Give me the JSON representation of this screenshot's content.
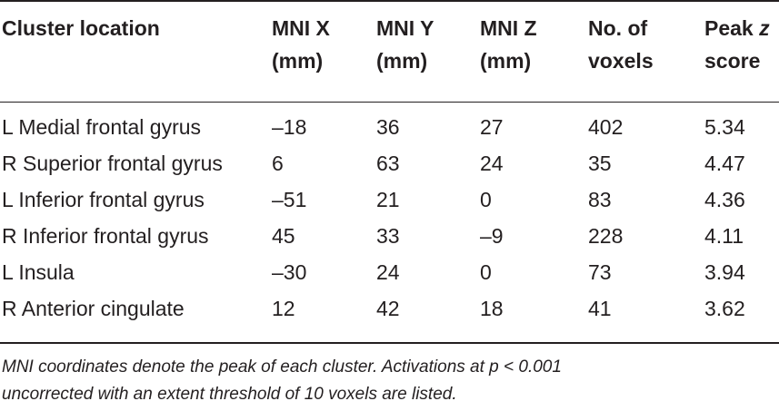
{
  "table": {
    "headers": [
      {
        "line1": "Cluster location",
        "line2": ""
      },
      {
        "line1": "MNI X",
        "line2": "(mm)"
      },
      {
        "line1": "MNI Y",
        "line2": "(mm)"
      },
      {
        "line1": "MNI Z",
        "line2": "(mm)"
      },
      {
        "line1": "No. of",
        "line2": "voxels"
      },
      {
        "line1": "Peak z",
        "line2": "score"
      }
    ],
    "rows": [
      [
        "L Medial frontal gyrus",
        "–18",
        "36",
        "27",
        "402",
        "5.34"
      ],
      [
        "R Superior frontal gyrus",
        "6",
        "63",
        "24",
        "35",
        "4.47"
      ],
      [
        "L Inferior frontal gyrus",
        "–51",
        "21",
        "0",
        "83",
        "4.36"
      ],
      [
        "R Inferior frontal gyrus",
        "45",
        "33",
        "–9",
        "228",
        "4.11"
      ],
      [
        "L Insula",
        "–30",
        "24",
        "0",
        "73",
        "3.94"
      ],
      [
        "R Anterior cingulate",
        "12",
        "42",
        "18",
        "41",
        "3.62"
      ]
    ]
  },
  "footnote": {
    "line1": "MNI coordinates denote the peak of each cluster. Activations at p < 0.001",
    "line2": "uncorrected with an extent threshold of 10 voxels are listed."
  }
}
